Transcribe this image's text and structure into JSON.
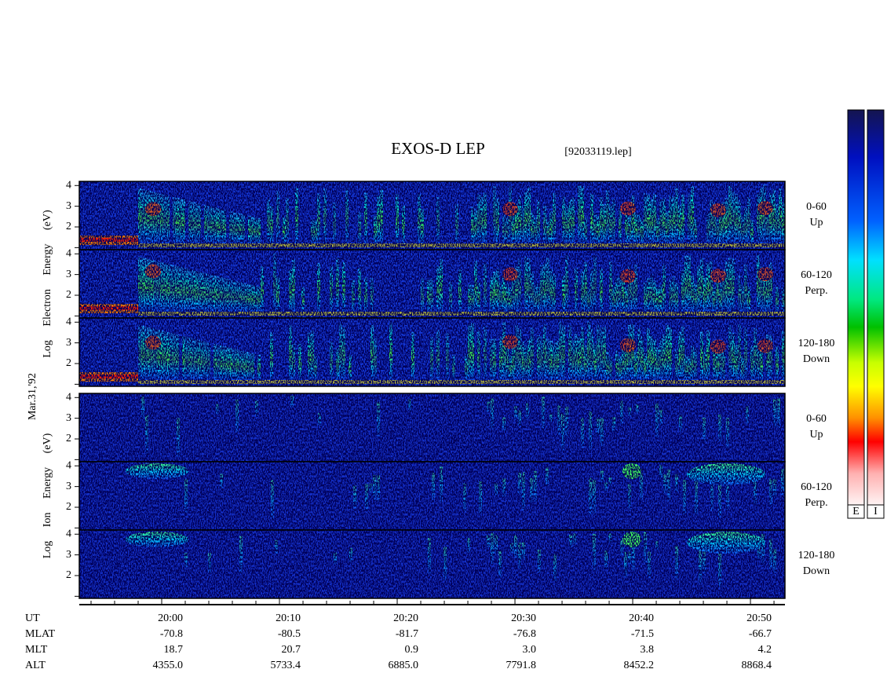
{
  "header": {
    "title": "EXOS-D LEP",
    "file": "[92033119.lep]"
  },
  "date": "Mar.31,'92",
  "groups": [
    {
      "axis_label": "Log Electron Energy (eV)",
      "panels": [
        {
          "pitch": "0-60",
          "direction": "Up"
        },
        {
          "pitch": "60-120",
          "direction": "Perp."
        },
        {
          "pitch": "120-180",
          "direction": "Down"
        }
      ]
    },
    {
      "axis_label": "Log Ion Energy (eV)",
      "panels": [
        {
          "pitch": "0-60",
          "direction": "Up"
        },
        {
          "pitch": "60-120",
          "direction": "Perp."
        },
        {
          "pitch": "120-180",
          "direction": "Down"
        }
      ]
    }
  ],
  "ylim": [
    0.9,
    4.2
  ],
  "yticks": [
    2,
    3,
    4
  ],
  "minor_yticks": [
    1
  ],
  "time_axis": {
    "xlim": [
      1193,
      1252.93
    ],
    "xticks": [
      {
        "value": 1200,
        "label": "20:00"
      },
      {
        "value": 1210,
        "label": "20:10"
      },
      {
        "value": 1220,
        "label": "20:20"
      },
      {
        "value": 1230,
        "label": "20:30"
      },
      {
        "value": 1240,
        "label": "20:40"
      },
      {
        "value": 1250,
        "label": "20:50"
      }
    ],
    "minor_xticks": [
      1194,
      1196,
      1198,
      1202,
      1204,
      1206,
      1208,
      1212,
      1214,
      1216,
      1218,
      1222,
      1224,
      1226,
      1228,
      1232,
      1234,
      1236,
      1238,
      1242,
      1244,
      1246,
      1248,
      1252
    ]
  },
  "ut_label": "UT",
  "ephemeris": [
    {
      "name": "MLAT",
      "values": [
        -70.8,
        -80.5,
        -81.7,
        -76.8,
        -71.5,
        -66.7
      ]
    },
    {
      "name": "MLT",
      "values": [
        18.7,
        20.7,
        0.9,
        {
          "value": 3,
          "label": "3.0"
        },
        3.8,
        4.2
      ]
    },
    {
      "name": "ALT",
      "values": [
        {
          "value": 4355,
          "label": "4355.0"
        },
        5733.4,
        {
          "value": 6885,
          "label": "6885.0"
        },
        7791.8,
        8452.2,
        8868.4
      ]
    }
  ],
  "colorbars": [
    "E",
    "I"
  ]
}
